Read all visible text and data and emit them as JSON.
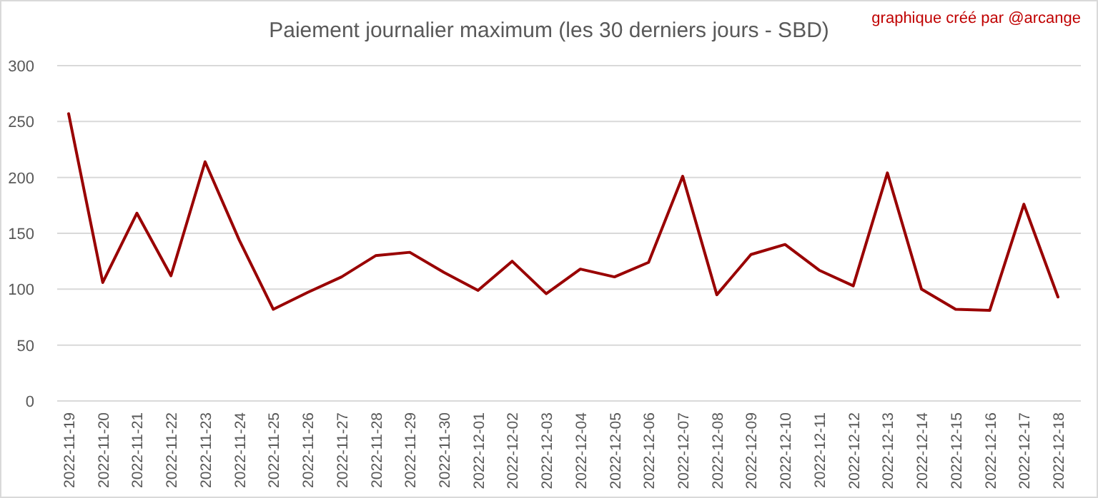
{
  "chart_data": {
    "type": "line",
    "title": "Paiement journalier maximum (les 30 derniers jours - SBD)",
    "annotations": [
      "graphique créé par @arcange"
    ],
    "categories": [
      "2022-11-19",
      "2022-11-20",
      "2022-11-21",
      "2022-11-22",
      "2022-11-23",
      "2022-11-24",
      "2022-11-25",
      "2022-11-26",
      "2022-11-27",
      "2022-11-28",
      "2022-11-29",
      "2022-11-30",
      "2022-12-01",
      "2022-12-02",
      "2022-12-03",
      "2022-12-04",
      "2022-12-05",
      "2022-12-06",
      "2022-12-07",
      "2022-12-08",
      "2022-12-09",
      "2022-12-10",
      "2022-12-11",
      "2022-12-12",
      "2022-12-13",
      "2022-12-14",
      "2022-12-15",
      "2022-12-16",
      "2022-12-17",
      "2022-12-18"
    ],
    "series": [
      {
        "color": "#990000",
        "values": [
          257,
          106,
          168,
          112,
          214,
          144,
          82,
          97,
          111,
          130,
          133,
          115,
          99,
          125,
          96,
          118,
          111,
          124,
          201,
          95,
          131,
          140,
          117,
          103,
          204,
          100,
          82,
          81,
          176,
          93
        ]
      }
    ],
    "ylim": [
      0,
      300
    ],
    "yticks": [
      0,
      50,
      100,
      150,
      200,
      250,
      300
    ],
    "grid": "y",
    "marker": "none",
    "line_style": "solid"
  }
}
